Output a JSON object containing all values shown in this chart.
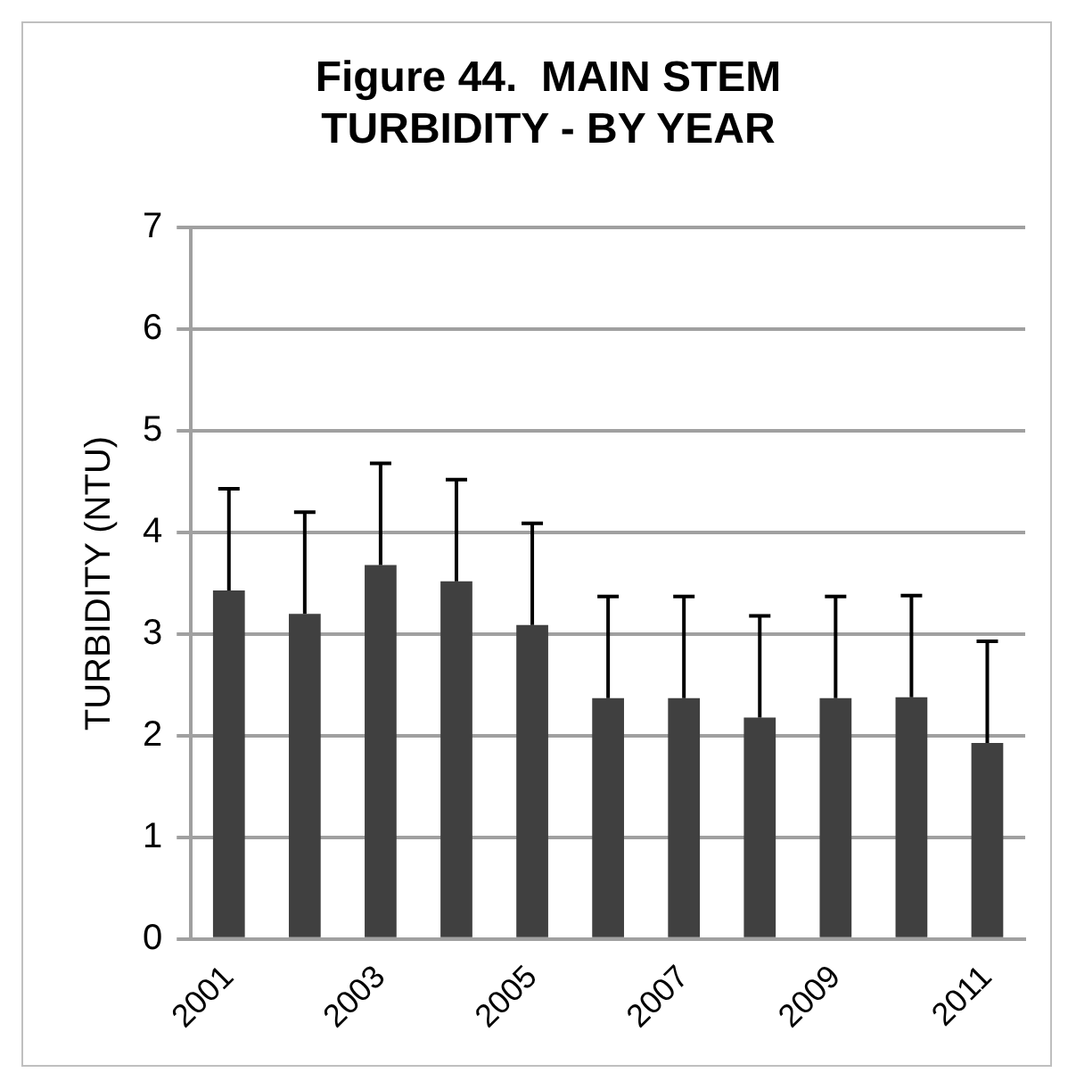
{
  "chart_data": {
    "type": "bar",
    "title": "Figure 44.  MAIN STEM TURBIDITY - BY YEAR",
    "ylabel": "TURBIDITY (NTU)",
    "categories": [
      "2001",
      null,
      "2003",
      null,
      "2005",
      null,
      "2007",
      null,
      "2009",
      null,
      "2011"
    ],
    "values": [
      3.43,
      3.2,
      3.68,
      3.52,
      3.09,
      2.37,
      2.37,
      2.18,
      2.37,
      2.38,
      1.93
    ],
    "errors": [
      [
        3.43,
        4.43
      ],
      [
        3.2,
        4.2
      ],
      [
        3.68,
        4.68
      ],
      [
        3.52,
        4.52
      ],
      [
        3.09,
        4.09
      ],
      [
        2.37,
        3.37
      ],
      [
        2.37,
        3.37
      ],
      [
        2.18,
        3.18
      ],
      [
        2.37,
        3.37
      ],
      [
        2.38,
        3.38
      ],
      [
        1.93,
        2.93
      ]
    ],
    "color": "#404040",
    "ylim": [
      0,
      7
    ],
    "yticks": [
      0,
      1,
      2,
      3,
      4,
      5,
      6,
      7
    ],
    "grid": "y",
    "legend": false
  }
}
